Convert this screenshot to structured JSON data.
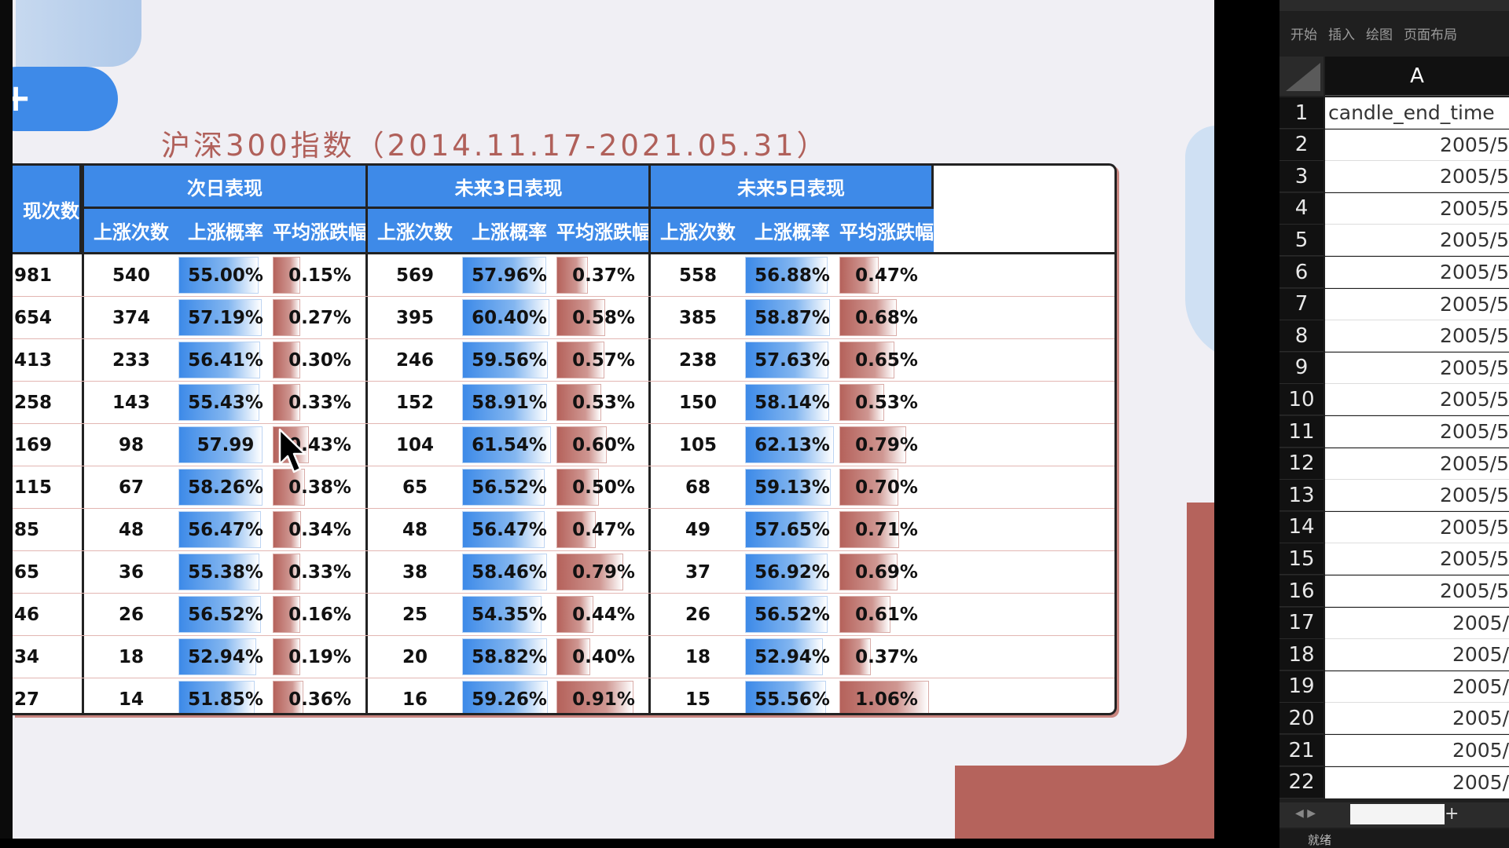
{
  "slide": {
    "title": "沪深300指数（2014.11.17-2021.05.31）",
    "accent_blue": "#3e8ae8",
    "accent_red": "#b5635c"
  },
  "table": {
    "first_col_header": "现次数",
    "groups": [
      {
        "label": "次日表现"
      },
      {
        "label": "未来3日表现"
      },
      {
        "label": "未来5日表现"
      }
    ],
    "sub_headers": [
      "上涨次数",
      "上涨概率",
      "平均涨跌幅"
    ],
    "rows": [
      {
        "first": "981",
        "c": [
          "540",
          "55.00%",
          "0.15%",
          "569",
          "57.96%",
          "0.37%",
          "558",
          "56.88%",
          "0.47%"
        ],
        "v": [
          55.0,
          0.15,
          57.96,
          0.37,
          56.88,
          0.47
        ]
      },
      {
        "first": "654",
        "c": [
          "374",
          "57.19%",
          "0.27%",
          "395",
          "60.40%",
          "0.58%",
          "385",
          "58.87%",
          "0.68%"
        ],
        "v": [
          57.19,
          0.27,
          60.4,
          0.58,
          58.87,
          0.68
        ]
      },
      {
        "first": "413",
        "c": [
          "233",
          "56.41%",
          "0.30%",
          "246",
          "59.56%",
          "0.57%",
          "238",
          "57.63%",
          "0.65%"
        ],
        "v": [
          56.41,
          0.3,
          59.56,
          0.57,
          57.63,
          0.65
        ]
      },
      {
        "first": "258",
        "c": [
          "143",
          "55.43%",
          "0.33%",
          "152",
          "58.91%",
          "0.53%",
          "150",
          "58.14%",
          "0.53%"
        ],
        "v": [
          55.43,
          0.33,
          58.91,
          0.53,
          58.14,
          0.53
        ]
      },
      {
        "first": "169",
        "c": [
          "98",
          "57.99",
          "0.43%",
          "104",
          "61.54%",
          "0.60%",
          "105",
          "62.13%",
          "0.79%"
        ],
        "v": [
          57.99,
          0.43,
          61.54,
          0.6,
          62.13,
          0.79
        ]
      },
      {
        "first": "115",
        "c": [
          "67",
          "58.26%",
          "0.38%",
          "65",
          "56.52%",
          "0.50%",
          "68",
          "59.13%",
          "0.70%"
        ],
        "v": [
          58.26,
          0.38,
          56.52,
          0.5,
          59.13,
          0.7
        ]
      },
      {
        "first": "85",
        "c": [
          "48",
          "56.47%",
          "0.34%",
          "48",
          "56.47%",
          "0.47%",
          "49",
          "57.65%",
          "0.71%"
        ],
        "v": [
          56.47,
          0.34,
          56.47,
          0.47,
          57.65,
          0.71
        ]
      },
      {
        "first": "65",
        "c": [
          "36",
          "55.38%",
          "0.33%",
          "38",
          "58.46%",
          "0.79%",
          "37",
          "56.92%",
          "0.69%"
        ],
        "v": [
          55.38,
          0.33,
          58.46,
          0.79,
          56.92,
          0.69
        ]
      },
      {
        "first": "46",
        "c": [
          "26",
          "56.52%",
          "0.16%",
          "25",
          "54.35%",
          "0.44%",
          "26",
          "56.52%",
          "0.61%"
        ],
        "v": [
          56.52,
          0.16,
          54.35,
          0.44,
          56.52,
          0.61
        ]
      },
      {
        "first": "34",
        "c": [
          "18",
          "52.94%",
          "0.19%",
          "20",
          "58.82%",
          "0.40%",
          "18",
          "52.94%",
          "0.37%"
        ],
        "v": [
          52.94,
          0.19,
          58.82,
          0.4,
          52.94,
          0.37
        ]
      },
      {
        "first": "27",
        "c": [
          "14",
          "51.85%",
          "0.36%",
          "16",
          "59.26%",
          "0.91%",
          "15",
          "55.56%",
          "1.06%"
        ],
        "v": [
          51.85,
          0.36,
          59.26,
          0.91,
          55.56,
          1.06
        ]
      }
    ]
  },
  "excel": {
    "tabs": [
      "开始",
      "插入",
      "绘图",
      "页面布局"
    ],
    "column_header": "A",
    "rows": [
      {
        "n": "1",
        "v": "candle_end_time"
      },
      {
        "n": "2",
        "v": "2005/5"
      },
      {
        "n": "3",
        "v": "2005/5"
      },
      {
        "n": "4",
        "v": "2005/5"
      },
      {
        "n": "5",
        "v": "2005/5"
      },
      {
        "n": "6",
        "v": "2005/5"
      },
      {
        "n": "7",
        "v": "2005/5"
      },
      {
        "n": "8",
        "v": "2005/5"
      },
      {
        "n": "9",
        "v": "2005/5"
      },
      {
        "n": "10",
        "v": "2005/5"
      },
      {
        "n": "11",
        "v": "2005/5"
      },
      {
        "n": "12",
        "v": "2005/5"
      },
      {
        "n": "13",
        "v": "2005/5"
      },
      {
        "n": "14",
        "v": "2005/5"
      },
      {
        "n": "15",
        "v": "2005/5"
      },
      {
        "n": "16",
        "v": "2005/5"
      },
      {
        "n": "17",
        "v": "2005/"
      },
      {
        "n": "18",
        "v": "2005/"
      },
      {
        "n": "19",
        "v": "2005/"
      },
      {
        "n": "20",
        "v": "2005/"
      },
      {
        "n": "21",
        "v": "2005/"
      },
      {
        "n": "22",
        "v": "2005/"
      }
    ],
    "status": "就绪"
  }
}
